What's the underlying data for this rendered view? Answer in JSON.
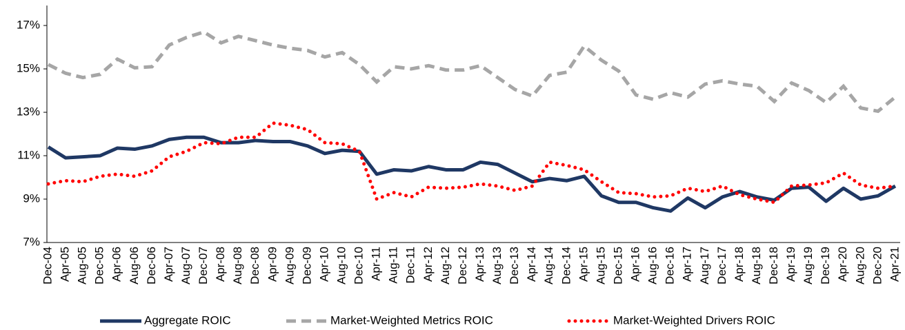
{
  "chart_data": {
    "type": "line",
    "categories": [
      "Dec-04",
      "Apr-05",
      "Aug-05",
      "Dec-05",
      "Apr-06",
      "Aug-06",
      "Dec-06",
      "Apr-07",
      "Aug-07",
      "Dec-07",
      "Apr-08",
      "Aug-08",
      "Dec-08",
      "Apr-09",
      "Aug-09",
      "Dec-09",
      "Apr-10",
      "Aug-10",
      "Dec-10",
      "Apr-11",
      "Aug-11",
      "Dec-11",
      "Apr-12",
      "Aug-12",
      "Dec-12",
      "Apr-13",
      "Aug-13",
      "Dec-13",
      "Apr-14",
      "Aug-14",
      "Dec-14",
      "Apr-15",
      "Aug-15",
      "Dec-15",
      "Apr-16",
      "Aug-16",
      "Dec-16",
      "Apr-17",
      "Aug-17",
      "Dec-17",
      "Apr-18",
      "Aug-18",
      "Dec-18",
      "Apr-19",
      "Aug-19",
      "Dec-19",
      "Apr-20",
      "Aug-20",
      "Dec-20",
      "Apr-21"
    ],
    "series": [
      {
        "name": "Aggregate ROIC",
        "color": "#1f3864",
        "style": "solid",
        "values": [
          11.4,
          10.9,
          10.95,
          11.0,
          11.35,
          11.3,
          11.45,
          11.75,
          11.85,
          11.85,
          11.6,
          11.6,
          11.7,
          11.65,
          11.65,
          11.45,
          11.1,
          11.25,
          11.2,
          10.15,
          10.35,
          10.3,
          10.5,
          10.35,
          10.35,
          10.7,
          10.6,
          10.2,
          9.8,
          9.95,
          9.85,
          10.05,
          9.15,
          8.85,
          8.85,
          8.6,
          8.45,
          9.05,
          8.6,
          9.1,
          9.35,
          9.1,
          8.95,
          9.5,
          9.55,
          8.9,
          9.5,
          9.0,
          9.15,
          9.6
        ]
      },
      {
        "name": "Market-Weighted Metrics ROIC",
        "color": "#a6a6a6",
        "style": "dashed",
        "values": [
          15.2,
          14.8,
          14.6,
          14.75,
          15.45,
          15.05,
          15.1,
          16.1,
          16.45,
          16.7,
          16.2,
          16.5,
          16.3,
          16.1,
          15.95,
          15.85,
          15.55,
          15.75,
          15.2,
          14.4,
          15.1,
          15.0,
          15.15,
          14.95,
          14.95,
          15.15,
          14.6,
          14.05,
          13.75,
          14.7,
          14.85,
          16.05,
          15.4,
          14.9,
          13.8,
          13.6,
          13.9,
          13.7,
          14.3,
          14.45,
          14.3,
          14.2,
          13.5,
          14.35,
          14.0,
          13.45,
          14.2,
          13.2,
          13.05,
          13.7
        ]
      },
      {
        "name": "Market-Weighted Drivers ROIC",
        "color": "#ff0000",
        "style": "dotted",
        "values": [
          9.7,
          9.85,
          9.8,
          10.05,
          10.15,
          10.05,
          10.3,
          10.95,
          11.2,
          11.6,
          11.55,
          11.85,
          11.85,
          12.5,
          12.4,
          12.2,
          11.6,
          11.55,
          11.2,
          9.0,
          9.3,
          9.1,
          9.55,
          9.5,
          9.55,
          9.7,
          9.6,
          9.4,
          9.6,
          10.7,
          10.55,
          10.35,
          9.8,
          9.3,
          9.25,
          9.1,
          9.15,
          9.5,
          9.35,
          9.6,
          9.2,
          9.0,
          8.85,
          9.6,
          9.65,
          9.75,
          10.2,
          9.65,
          9.5,
          9.6
        ]
      }
    ],
    "ylim": [
      7,
      18
    ],
    "yticks": [
      {
        "value": 7,
        "label": "7%"
      },
      {
        "value": 9,
        "label": "9%"
      },
      {
        "value": 11,
        "label": "11%"
      },
      {
        "value": 13,
        "label": "13%"
      },
      {
        "value": 15,
        "label": "15%"
      },
      {
        "value": 17,
        "label": "17%"
      }
    ],
    "grid": false,
    "legend": "bottom"
  }
}
